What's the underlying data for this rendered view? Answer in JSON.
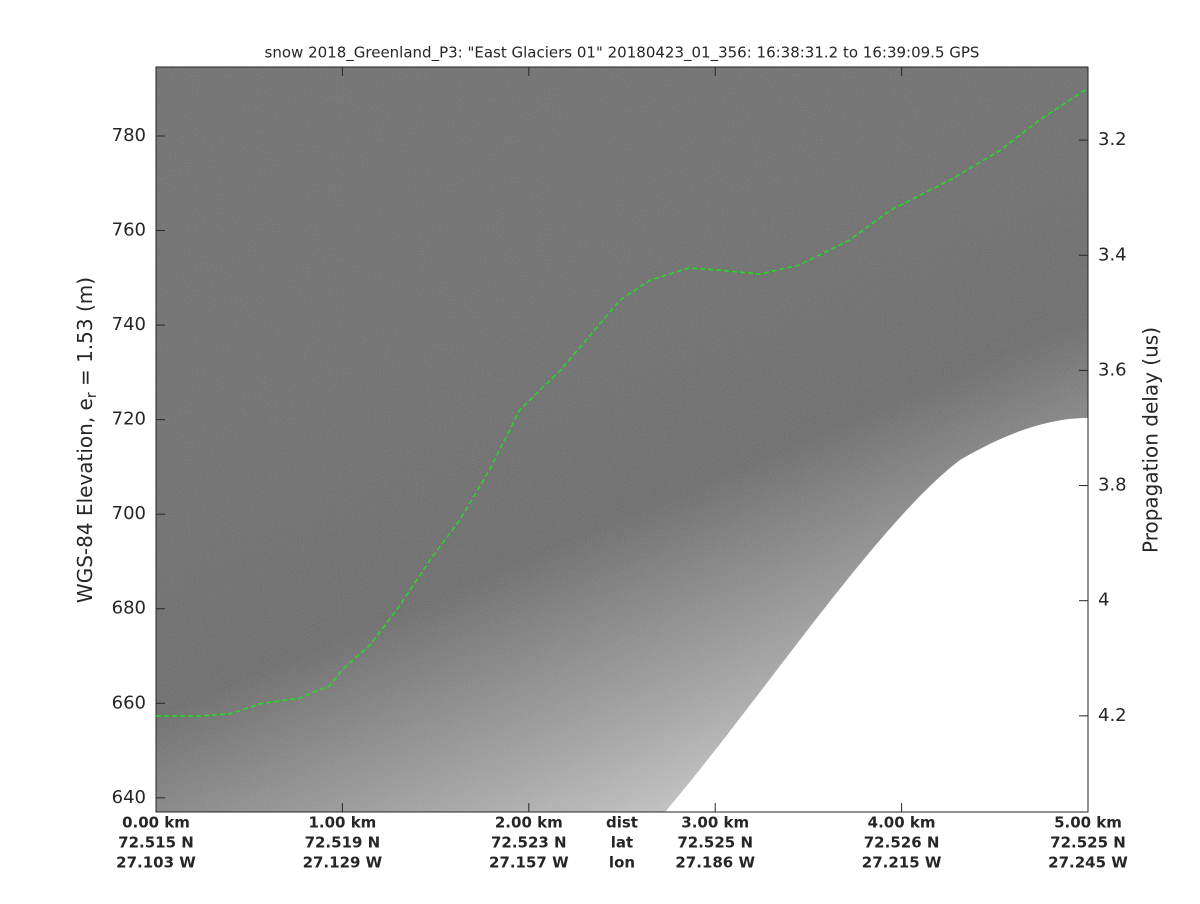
{
  "chart_data": {
    "type": "line",
    "title": "snow 2018_Greenland_P3: \"East Glaciers 01\"  20180423_01_356: 16:38:31.2 to 16:39:09.5 GPS",
    "ylabel": [
      "WGS-84 Elevation, e",
      "r",
      " = 1.53 (m)"
    ],
    "y2label": "Propagation delay (us)",
    "xlim": [
      0,
      5
    ],
    "xticks": [
      {
        "value": 0,
        "label": "0.00 km"
      },
      {
        "value": 1,
        "label": "1.00 km"
      },
      {
        "value": 2,
        "label": "2.00 km"
      },
      {
        "value": 3,
        "label": "3.00 km"
      },
      {
        "value": 4,
        "label": "4.00 km"
      },
      {
        "value": 5,
        "label": "5.00 km"
      }
    ],
    "lat_labels": [
      "72.515 N",
      "72.519 N",
      "72.523 N",
      "72.525 N",
      "72.526 N",
      "72.525 N"
    ],
    "lon_labels": [
      "27.103 W",
      "27.129 W",
      "27.157 W",
      "27.186 W",
      "27.215 W",
      "27.245 W"
    ],
    "row_labels": [
      "dist",
      "lat",
      "lon"
    ],
    "ylim": [
      637,
      794.6
    ],
    "yticks": [
      640,
      660,
      680,
      700,
      720,
      740,
      760,
      780
    ],
    "y2lim": [
      4.367,
      3.073
    ],
    "y2ticks": [
      3.2,
      3.4,
      3.6,
      3.8,
      4,
      4.2
    ],
    "series": [
      {
        "color": "#22dd22",
        "x": [
          0,
          0.24,
          0.4,
          0.56,
          0.77,
          0.93,
          1.01,
          1.15,
          1.31,
          1.47,
          1.63,
          1.79,
          1.95,
          2.17,
          2.33,
          2.49,
          2.65,
          2.86,
          3.03,
          3.24,
          3.45,
          3.72,
          3.94,
          4.26,
          4.53,
          4.74,
          5
        ],
        "values": [
          657.3,
          657.3,
          657.8,
          659.9,
          661.1,
          663.7,
          667.5,
          672.4,
          680.8,
          690.3,
          698.8,
          709.4,
          722,
          730.5,
          737.9,
          745.3,
          749.5,
          752.1,
          751.6,
          750.8,
          752.7,
          758,
          764.3,
          770.7,
          777,
          783.4,
          790.1
        ]
      }
    ]
  }
}
